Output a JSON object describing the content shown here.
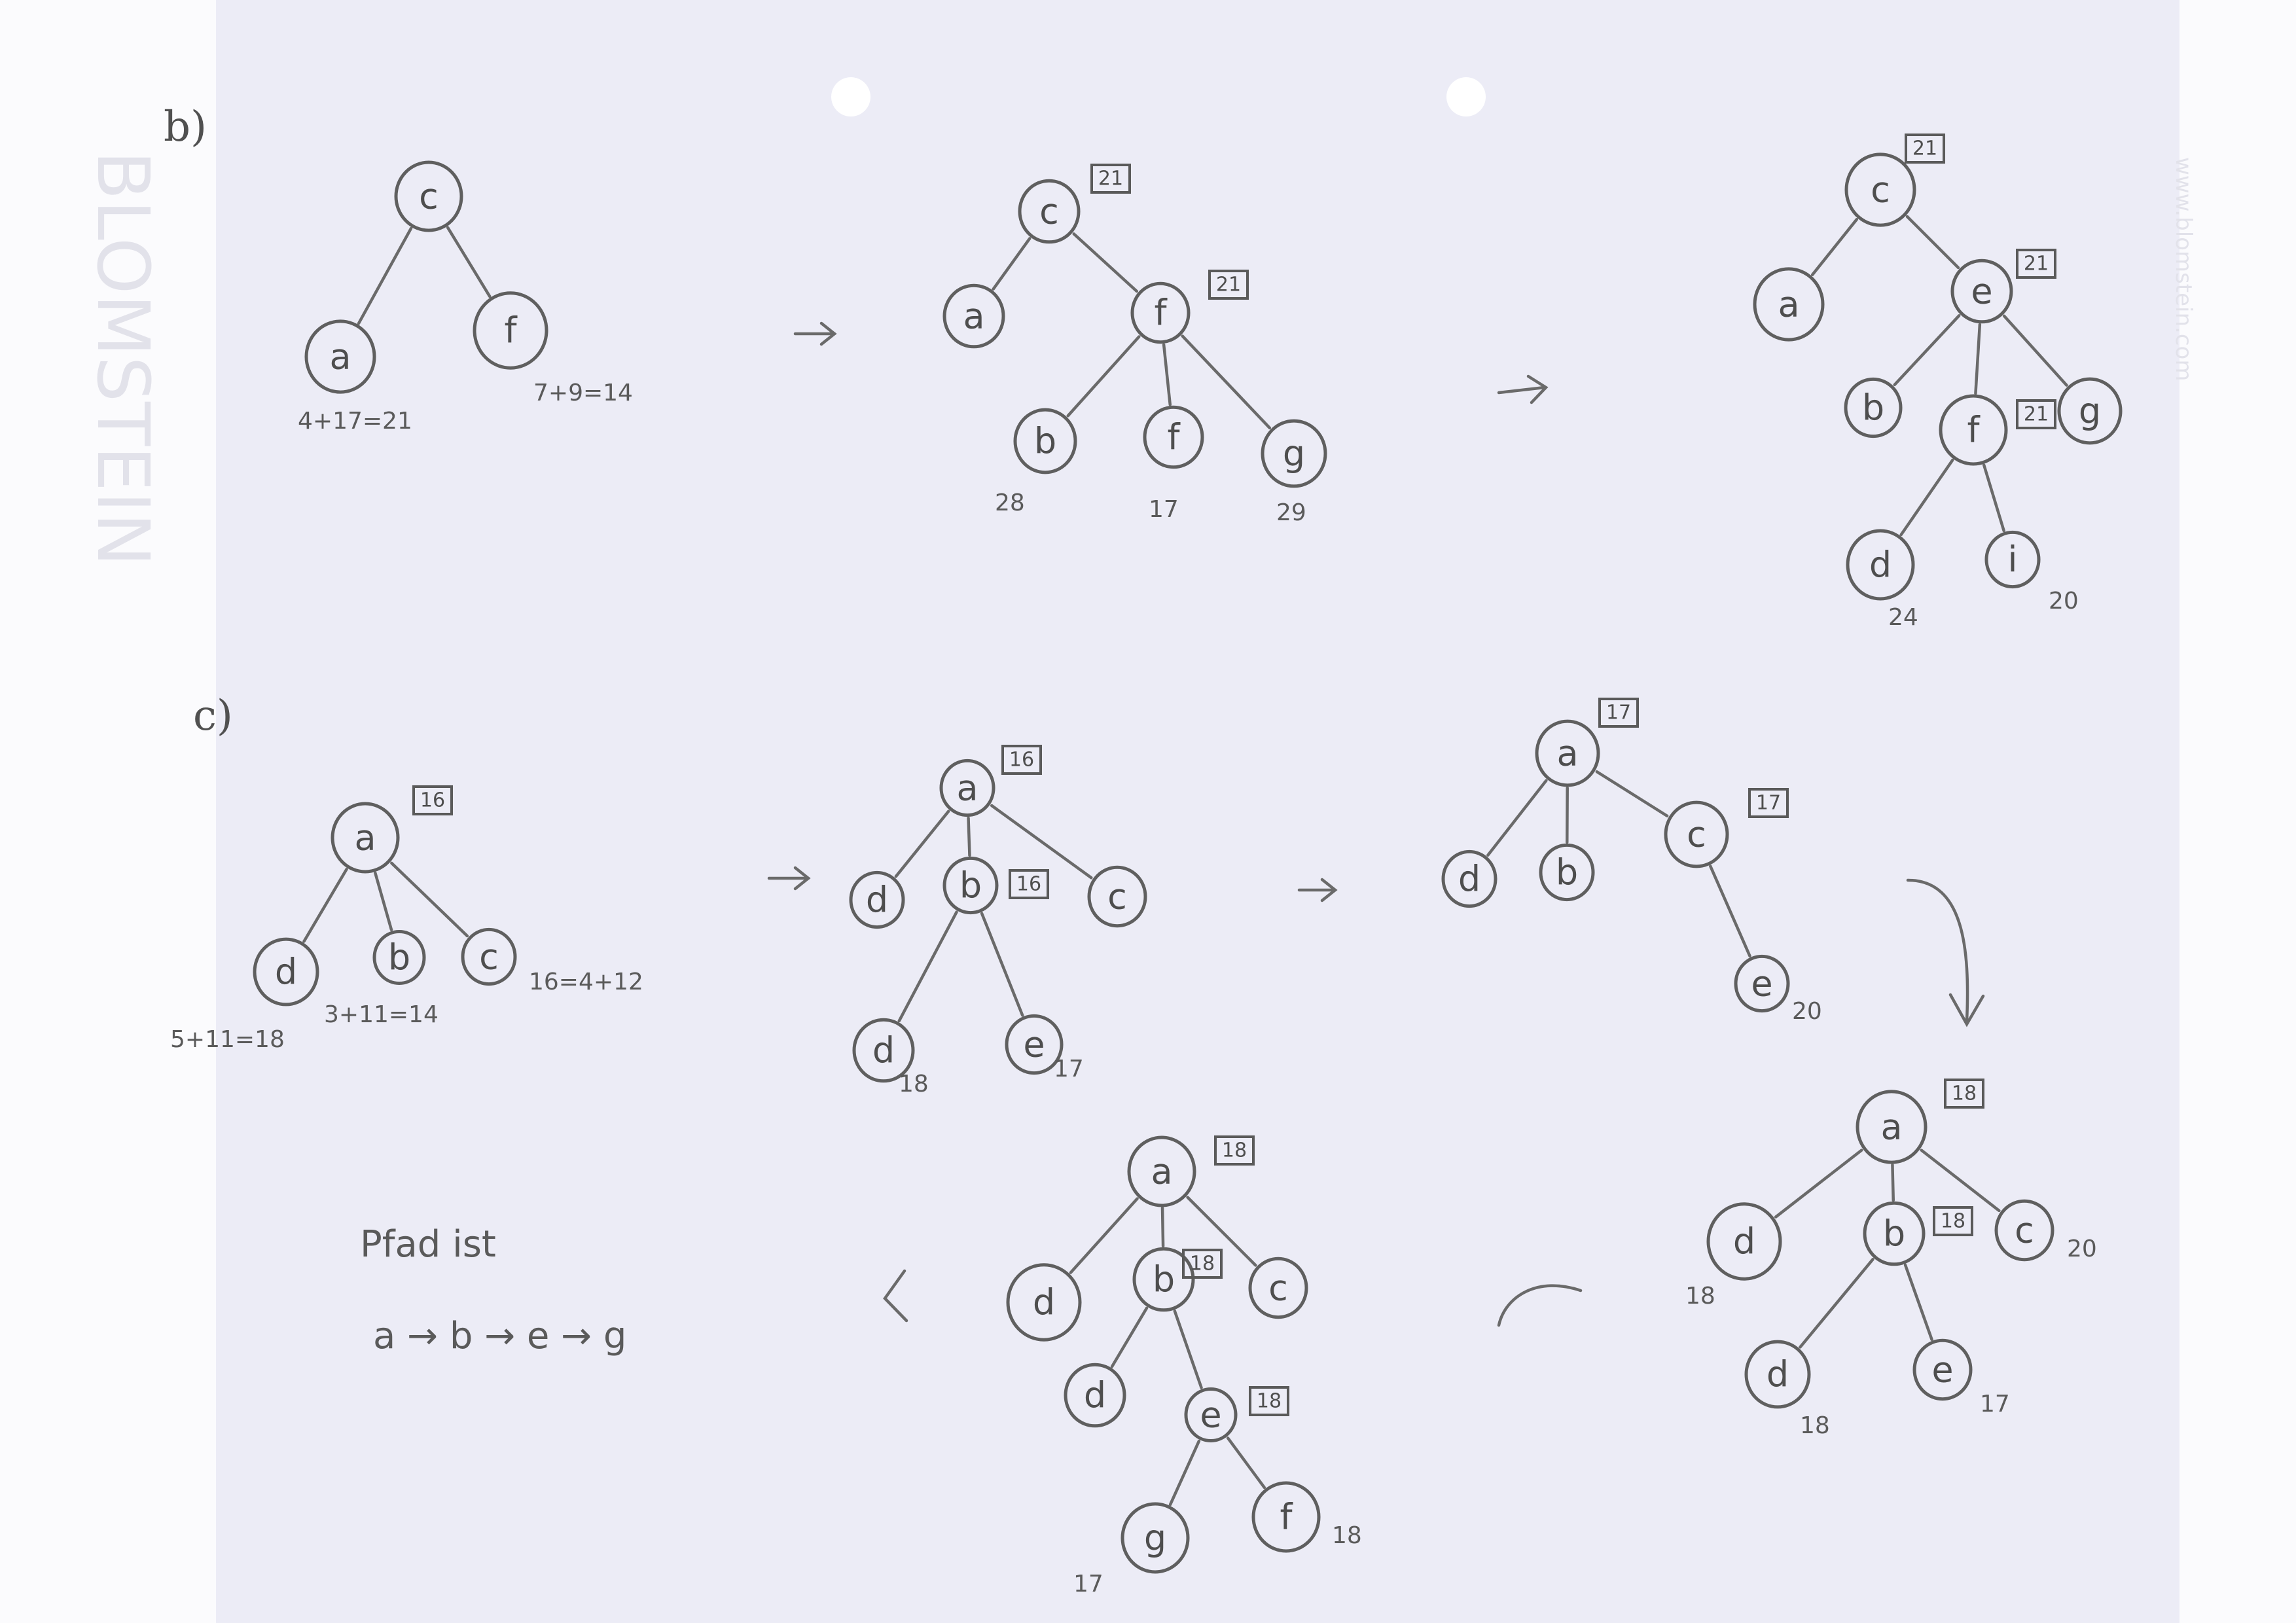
{
  "parts": [
    {
      "label": "b)"
    },
    {
      "label": "c)"
    }
  ],
  "trees": [
    {
      "id": "b1",
      "nodes": [
        {
          "id": "c",
          "label": "c"
        },
        {
          "id": "a",
          "label": "a"
        },
        {
          "id": "f",
          "label": "f"
        }
      ],
      "edges": [
        [
          "c",
          "a"
        ],
        [
          "c",
          "f"
        ]
      ],
      "boxes": [],
      "notes": [
        {
          "text": "4+17=21"
        },
        {
          "text": "7+9=14"
        }
      ]
    },
    {
      "id": "b2",
      "nodes": [
        {
          "id": "c",
          "label": "c"
        },
        {
          "id": "a",
          "label": "a"
        },
        {
          "id": "f",
          "label": "f"
        },
        {
          "id": "b",
          "label": "b"
        },
        {
          "id": "f2",
          "label": "f"
        },
        {
          "id": "g",
          "label": "g"
        }
      ],
      "edges": [
        [
          "c",
          "a"
        ],
        [
          "c",
          "f"
        ],
        [
          "f",
          "b"
        ],
        [
          "f",
          "f2"
        ],
        [
          "f",
          "g"
        ]
      ],
      "boxes": [
        {
          "text": "21"
        },
        {
          "text": "21"
        }
      ],
      "notes": [
        {
          "text": "28"
        },
        {
          "text": "17"
        },
        {
          "text": "29"
        }
      ]
    },
    {
      "id": "b3",
      "nodes": [
        {
          "id": "c",
          "label": "c"
        },
        {
          "id": "a",
          "label": "a"
        },
        {
          "id": "e",
          "label": "e"
        },
        {
          "id": "b",
          "label": "b"
        },
        {
          "id": "f",
          "label": "f"
        },
        {
          "id": "g",
          "label": "g"
        },
        {
          "id": "d",
          "label": "d"
        },
        {
          "id": "i",
          "label": "i"
        }
      ],
      "edges": [
        [
          "c",
          "a"
        ],
        [
          "c",
          "e"
        ],
        [
          "e",
          "b"
        ],
        [
          "e",
          "f"
        ],
        [
          "e",
          "g"
        ],
        [
          "f",
          "d"
        ],
        [
          "f",
          "i"
        ]
      ],
      "boxes": [
        {
          "text": "21"
        },
        {
          "text": "21"
        },
        {
          "text": "21"
        }
      ],
      "notes": [
        {
          "text": "24"
        },
        {
          "text": "20"
        }
      ]
    },
    {
      "id": "c1",
      "nodes": [
        {
          "id": "a",
          "label": "a"
        },
        {
          "id": "d",
          "label": "d"
        },
        {
          "id": "b",
          "label": "b"
        },
        {
          "id": "c",
          "label": "c"
        }
      ],
      "edges": [
        [
          "a",
          "d"
        ],
        [
          "a",
          "b"
        ],
        [
          "a",
          "c"
        ]
      ],
      "boxes": [
        {
          "text": "16"
        }
      ],
      "notes": [
        {
          "text": "5+11=18"
        },
        {
          "text": "3+11=14"
        },
        {
          "text": "16=4+12"
        }
      ]
    },
    {
      "id": "c2",
      "nodes": [
        {
          "id": "a",
          "label": "a"
        },
        {
          "id": "d",
          "label": "d"
        },
        {
          "id": "b",
          "label": "b"
        },
        {
          "id": "c",
          "label": "c"
        },
        {
          "id": "d2",
          "label": "d"
        },
        {
          "id": "e",
          "label": "e"
        }
      ],
      "edges": [
        [
          "a",
          "d"
        ],
        [
          "a",
          "b"
        ],
        [
          "a",
          "c"
        ],
        [
          "b",
          "d2"
        ],
        [
          "b",
          "e"
        ]
      ],
      "boxes": [
        {
          "text": "16"
        },
        {
          "text": "16"
        }
      ],
      "notes": [
        {
          "text": "18"
        },
        {
          "text": "17"
        }
      ]
    },
    {
      "id": "c3",
      "nodes": [
        {
          "id": "a",
          "label": "a"
        },
        {
          "id": "d",
          "label": "d"
        },
        {
          "id": "b",
          "label": "b"
        },
        {
          "id": "c",
          "label": "c"
        },
        {
          "id": "e",
          "label": "e"
        }
      ],
      "edges": [
        [
          "a",
          "d"
        ],
        [
          "a",
          "b"
        ],
        [
          "a",
          "c"
        ],
        [
          "c",
          "e"
        ]
      ],
      "boxes": [
        {
          "text": "17"
        },
        {
          "text": "17"
        }
      ],
      "notes": [
        {
          "text": "20"
        }
      ]
    },
    {
      "id": "c4",
      "nodes": [
        {
          "id": "a",
          "label": "a"
        },
        {
          "id": "d",
          "label": "d"
        },
        {
          "id": "b",
          "label": "b"
        },
        {
          "id": "c",
          "label": "c"
        },
        {
          "id": "d2",
          "label": "d"
        },
        {
          "id": "e",
          "label": "e"
        }
      ],
      "edges": [
        [
          "a",
          "d"
        ],
        [
          "a",
          "b"
        ],
        [
          "a",
          "c"
        ],
        [
          "b",
          "d2"
        ],
        [
          "b",
          "e"
        ]
      ],
      "boxes": [
        {
          "text": "18"
        },
        {
          "text": "18"
        }
      ],
      "notes": [
        {
          "text": "18"
        },
        {
          "text": "20"
        },
        {
          "text": "18"
        },
        {
          "text": "17"
        }
      ]
    },
    {
      "id": "c5",
      "nodes": [
        {
          "id": "a",
          "label": "a"
        },
        {
          "id": "d",
          "label": "d"
        },
        {
          "id": "b",
          "label": "b"
        },
        {
          "id": "c",
          "label": "c"
        },
        {
          "id": "d2",
          "label": "d"
        },
        {
          "id": "e",
          "label": "e"
        },
        {
          "id": "g",
          "label": "g"
        },
        {
          "id": "f",
          "label": "f"
        }
      ],
      "edges": [
        [
          "a",
          "d"
        ],
        [
          "a",
          "b"
        ],
        [
          "a",
          "c"
        ],
        [
          "b",
          "d2"
        ],
        [
          "b",
          "e"
        ],
        [
          "e",
          "g"
        ],
        [
          "e",
          "f"
        ]
      ],
      "boxes": [
        {
          "text": "18"
        },
        {
          "text": "18"
        },
        {
          "text": "18"
        }
      ],
      "notes": [
        {
          "text": "17"
        },
        {
          "text": "18"
        }
      ]
    }
  ],
  "path_note": {
    "line1": "Pfad ist",
    "line2": "a → b → e → g"
  },
  "watermarks": [
    {
      "text": "BLOMSTEIN"
    },
    {
      "text": "www.blomstein.com"
    }
  ]
}
